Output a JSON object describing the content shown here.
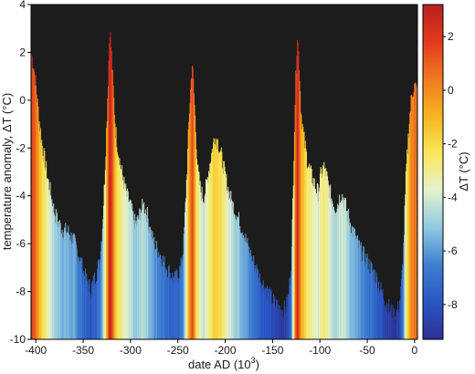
{
  "chart_data": {
    "type": "area",
    "xlabel": "date AD (10",
    "xlabel_sup": "3",
    "xlabel_close": ")",
    "ylabel": "temperature anomaly,  ΔT  (°C)",
    "colorbar_label": "ΔT  (°C)",
    "xlim": [
      -405,
      3
    ],
    "ylim": [
      -10,
      4
    ],
    "xticks": [
      -400,
      -350,
      -300,
      -250,
      -200,
      -150,
      -100,
      -50,
      0
    ],
    "yticks": [
      -10,
      -8,
      -6,
      -4,
      -2,
      0,
      2,
      4
    ],
    "colorbar_range": [
      -9.3,
      3.2
    ],
    "colorbar_ticks": [
      -8,
      -6,
      -4,
      -2,
      0,
      2
    ],
    "grid": false,
    "background_color": "#1c1c1c",
    "colormap": [
      "#2e3192",
      "#2a56c6",
      "#3f7fd0",
      "#8fc9e0",
      "#e6f2d0",
      "#f8e85a",
      "#f6b520",
      "#ef7a22",
      "#e23a1e",
      "#b81f1f"
    ],
    "series": [
      {
        "x": [
          -405,
          -402,
          -399,
          -396,
          -393,
          -390,
          -387,
          -384,
          -381,
          -378,
          -375,
          -372,
          -369,
          -366,
          -363,
          -360,
          -357,
          -354,
          -351,
          -348,
          -345,
          -342,
          -339,
          -336,
          -333,
          -330,
          -327,
          -324,
          -322,
          -320,
          -318,
          -316,
          -313,
          -310,
          -307,
          -304,
          -301,
          -298,
          -295,
          -292,
          -289,
          -286,
          -283,
          -280,
          -277,
          -274,
          -271,
          -268,
          -265,
          -262,
          -259,
          -256,
          -253,
          -250,
          -247,
          -244,
          -241,
          -238,
          -235,
          -233,
          -231,
          -229,
          -226,
          -223,
          -220,
          -217,
          -214,
          -211,
          -208,
          -205,
          -202,
          -199,
          -196,
          -193,
          -190,
          -187,
          -184,
          -181,
          -178,
          -175,
          -172,
          -169,
          -166,
          -163,
          -160,
          -157,
          -154,
          -151,
          -148,
          -145,
          -142,
          -139,
          -136,
          -133,
          -130,
          -128,
          -126,
          -124,
          -122,
          -120,
          -117,
          -114,
          -111,
          -108,
          -105,
          -102,
          -99,
          -96,
          -93,
          -90,
          -87,
          -84,
          -81,
          -78,
          -75,
          -72,
          -69,
          -66,
          -63,
          -60,
          -57,
          -54,
          -51,
          -48,
          -45,
          -42,
          -39,
          -36,
          -33,
          -30,
          -27,
          -24,
          -21,
          -18,
          -15,
          -12,
          -9,
          -6,
          -3,
          0,
          2
        ],
        "y": [
          2.0,
          1.3,
          0.2,
          -1.0,
          -2.0,
          -2.7,
          -3.4,
          -4.0,
          -4.6,
          -5.0,
          -5.2,
          -5.4,
          -5.5,
          -5.5,
          -5.7,
          -5.9,
          -6.2,
          -6.6,
          -7.0,
          -7.4,
          -7.7,
          -7.9,
          -7.6,
          -7.2,
          -6.8,
          -5.5,
          -3.0,
          0.5,
          3.1,
          1.8,
          0.2,
          -1.2,
          -2.2,
          -2.9,
          -3.5,
          -4.0,
          -4.3,
          -4.8,
          -5.2,
          -5.0,
          -4.6,
          -4.4,
          -4.7,
          -5.3,
          -5.8,
          -6.1,
          -6.3,
          -6.5,
          -6.8,
          -7.0,
          -7.2,
          -7.4,
          -7.5,
          -7.3,
          -7.0,
          -6.0,
          -3.5,
          -0.5,
          1.6,
          0.2,
          -1.5,
          -3.0,
          -3.8,
          -4.1,
          -3.6,
          -2.8,
          -2.1,
          -1.5,
          -1.7,
          -2.2,
          -2.8,
          -3.4,
          -3.9,
          -4.3,
          -4.6,
          -4.9,
          -5.2,
          -5.5,
          -5.9,
          -6.3,
          -6.6,
          -6.9,
          -7.2,
          -7.5,
          -7.7,
          -7.9,
          -8.1,
          -8.3,
          -8.5,
          -8.6,
          -8.7,
          -8.8,
          -8.7,
          -8.1,
          -6.5,
          -3.0,
          0.5,
          2.8,
          1.5,
          -0.5,
          -1.6,
          -2.4,
          -2.9,
          -3.3,
          -3.6,
          -3.9,
          -3.1,
          -2.8,
          -3.2,
          -3.8,
          -4.2,
          -4.5,
          -4.3,
          -3.9,
          -4.1,
          -4.6,
          -5.0,
          -5.4,
          -5.7,
          -6.0,
          -6.3,
          -6.5,
          -6.7,
          -6.9,
          -7.1,
          -7.3,
          -7.6,
          -7.9,
          -8.2,
          -8.5,
          -8.7,
          -8.9,
          -9.0,
          -8.8,
          -8.2,
          -6.5,
          -3.0,
          -1.0,
          0.3,
          0.6,
          0.4
        ]
      }
    ]
  }
}
